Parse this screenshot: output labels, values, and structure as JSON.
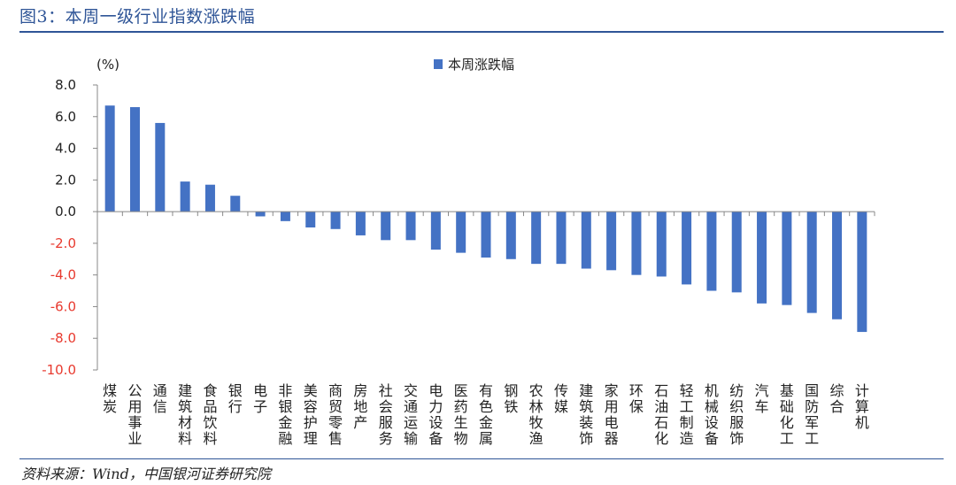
{
  "figure": {
    "title": "图3：本周一级行业指数涨跌幅",
    "source": "资料来源：Wind，中国银河证券研究院"
  },
  "colors": {
    "bar": "#4472c4",
    "title": "#2f5597",
    "positive_tick": "#222222",
    "negative_tick": "#e83a2f"
  },
  "chart_data": {
    "type": "bar",
    "unit_label": "(%)",
    "legend": {
      "label": "本周涨跌幅",
      "placement": "top-center"
    },
    "ylim": [
      -10,
      8
    ],
    "yticks": [
      8,
      6,
      4,
      2,
      0,
      -2,
      -4,
      -6,
      -8,
      -10
    ],
    "ytick_labels": [
      "8.0",
      "6.0",
      "4.0",
      "2.0",
      "0.0",
      "-2.0",
      "-4.0",
      "-6.0",
      "-8.0",
      "-10.0"
    ],
    "grid": false,
    "categories": [
      "煤炭",
      "公用事业",
      "通信",
      "建筑材料",
      "食品饮料",
      "银行",
      "电子",
      "非银金融",
      "美容护理",
      "商贸零售",
      "房地产",
      "社会服务",
      "交通运输",
      "电力设备",
      "医药生物",
      "有色金属",
      "钢铁",
      "农林牧渔",
      "传媒",
      "建筑装饰",
      "家用电器",
      "环保",
      "石油石化",
      "轻工制造",
      "机械设备",
      "纺织服饰",
      "汽车",
      "基础化工",
      "国防军工",
      "综合",
      "计算机"
    ],
    "values": [
      6.7,
      6.6,
      5.6,
      1.9,
      1.7,
      1.0,
      -0.3,
      -0.6,
      -1.0,
      -1.1,
      -1.5,
      -1.8,
      -1.8,
      -2.4,
      -2.6,
      -2.9,
      -3.0,
      -3.3,
      -3.3,
      -3.6,
      -3.7,
      -4.0,
      -4.1,
      -4.6,
      -5.0,
      -5.1,
      -5.8,
      -5.9,
      -6.4,
      -6.8,
      -7.6
    ]
  }
}
